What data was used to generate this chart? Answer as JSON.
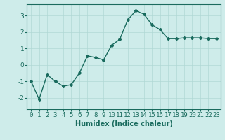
{
  "x": [
    0,
    1,
    2,
    3,
    4,
    5,
    6,
    7,
    8,
    9,
    10,
    11,
    12,
    13,
    14,
    15,
    16,
    17,
    18,
    19,
    20,
    21,
    22,
    23
  ],
  "y": [
    -1.0,
    -2.1,
    -0.6,
    -1.0,
    -1.3,
    -1.2,
    -0.5,
    0.55,
    0.45,
    0.3,
    1.2,
    1.55,
    2.75,
    3.3,
    3.1,
    2.45,
    2.15,
    1.6,
    1.6,
    1.65,
    1.65,
    1.65,
    1.6,
    1.6
  ],
  "line_color": "#1a6b5e",
  "marker": "D",
  "markersize": 2.0,
  "linewidth": 1.0,
  "xlabel": "Humidex (Indice chaleur)",
  "bg_color": "#ceecea",
  "grid_color": "#b0d8d5",
  "yticks": [
    -2,
    -1,
    0,
    1,
    2,
    3
  ],
  "xlim": [
    -0.5,
    23.5
  ],
  "ylim": [
    -2.7,
    3.7
  ],
  "xlabel_fontsize": 7,
  "tick_fontsize": 6.5
}
